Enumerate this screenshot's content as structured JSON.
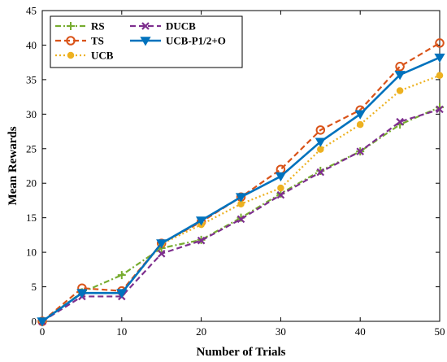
{
  "chart_data": {
    "type": "line",
    "title": "",
    "xlabel": "Number of Trials",
    "ylabel": "Mean Rewards",
    "xlim": [
      0,
      50
    ],
    "ylim": [
      0,
      45
    ],
    "xticks": [
      0,
      10,
      20,
      30,
      40,
      50
    ],
    "yticks": [
      0,
      5,
      10,
      15,
      20,
      25,
      30,
      35,
      40,
      45
    ],
    "grid": false,
    "legend_position": "top-left",
    "x": [
      0,
      5,
      10,
      15,
      20,
      25,
      30,
      35,
      40,
      45,
      50
    ],
    "series": [
      {
        "name": "RS",
        "color": "#77AC30",
        "dash": "dashdot",
        "marker": "plus",
        "values": [
          0,
          4.2,
          6.7,
          10.6,
          11.8,
          15.0,
          18.5,
          21.8,
          24.6,
          28.5,
          31.0
        ]
      },
      {
        "name": "TS",
        "color": "#D95319",
        "dash": "dashed",
        "marker": "circle",
        "values": [
          0,
          4.8,
          4.4,
          11.3,
          14.4,
          18.0,
          22.0,
          27.7,
          30.6,
          36.9,
          40.3
        ]
      },
      {
        "name": "UCB",
        "color": "#EDB120",
        "dash": "dotted",
        "marker": "dot",
        "values": [
          0,
          4.1,
          4.1,
          11.2,
          14.0,
          17.0,
          19.3,
          24.9,
          28.5,
          33.4,
          35.6
        ]
      },
      {
        "name": "DUCB",
        "color": "#7E2F8E",
        "dash": "dashed",
        "marker": "x",
        "values": [
          0,
          3.6,
          3.6,
          9.8,
          11.7,
          14.8,
          18.3,
          21.6,
          24.6,
          28.9,
          30.7
        ]
      },
      {
        "name": "UCB-P1/2+O",
        "color": "#0072BD",
        "dash": "solid",
        "marker": "triangle-down",
        "values": [
          0,
          4.1,
          4.1,
          11.3,
          14.6,
          18.0,
          21.0,
          26.0,
          30.0,
          35.7,
          38.2
        ]
      }
    ]
  }
}
